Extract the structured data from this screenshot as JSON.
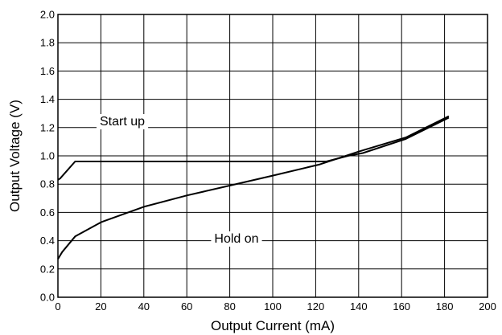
{
  "chart_data": {
    "type": "line",
    "title": "",
    "xlabel": "Output Current (mA)",
    "ylabel": "Output Voltage (V)",
    "xlim": [
      0,
      200
    ],
    "ylim": [
      0.0,
      2.0
    ],
    "x_ticks": [
      "0",
      "20",
      "40",
      "60",
      "80",
      "100",
      "120",
      "140",
      "160",
      "180",
      "200"
    ],
    "y_ticks": [
      "0.0",
      "0.2",
      "0.4",
      "0.6",
      "0.8",
      "1.0",
      "1.2",
      "1.4",
      "1.6",
      "1.8",
      "2.0"
    ],
    "grid": true,
    "series": [
      {
        "name": "Start up",
        "points": [
          [
            0,
            0.83
          ],
          [
            1,
            0.84
          ],
          [
            8,
            0.96
          ],
          [
            20,
            0.96
          ],
          [
            60,
            0.96
          ],
          [
            100,
            0.96
          ],
          [
            125,
            0.96
          ],
          [
            135,
            1.0
          ],
          [
            142,
            1.02
          ],
          [
            162,
            1.12
          ],
          [
            182,
            1.27
          ]
        ]
      },
      {
        "name": "Hold on",
        "points": [
          [
            0,
            0.27
          ],
          [
            2,
            0.32
          ],
          [
            8,
            0.43
          ],
          [
            20,
            0.53
          ],
          [
            40,
            0.64
          ],
          [
            60,
            0.72
          ],
          [
            80,
            0.79
          ],
          [
            100,
            0.86
          ],
          [
            122,
            0.94
          ],
          [
            140,
            1.03
          ],
          [
            162,
            1.13
          ],
          [
            182,
            1.28
          ]
        ]
      }
    ]
  }
}
